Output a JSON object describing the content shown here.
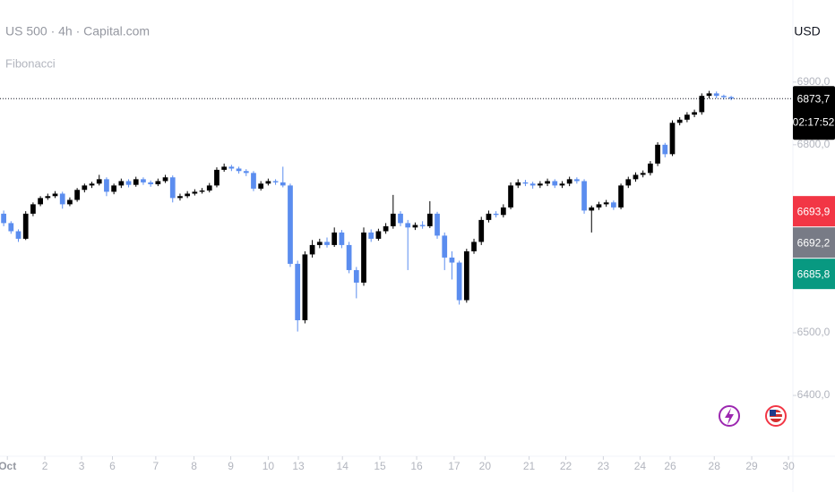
{
  "chart_data": {
    "type": "candlestick",
    "title": "US 500 · 4h · Capital.com",
    "subtitle": "Fibonacci",
    "currency": "USD",
    "up_color": "#000000",
    "down_color": "#5b8def",
    "xlim": [
      -0.5,
      107.4
    ],
    "ylim": [
      6303,
      7031
    ],
    "yticks": [
      {
        "value": 6900,
        "label": "6900,0"
      },
      {
        "value": 6800,
        "label": "6800,0"
      },
      {
        "value": 6500,
        "label": "6500,0"
      },
      {
        "value": 6400,
        "label": "6400,0"
      }
    ],
    "xticks": [
      {
        "value": 0.5,
        "label": "Oct"
      },
      {
        "value": 5.6,
        "label": "2"
      },
      {
        "value": 10.6,
        "label": "3"
      },
      {
        "value": 14.8,
        "label": "6"
      },
      {
        "value": 20.7,
        "label": "7"
      },
      {
        "value": 25.9,
        "label": "8"
      },
      {
        "value": 30.9,
        "label": "9"
      },
      {
        "value": 36,
        "label": "10"
      },
      {
        "value": 40.1,
        "label": "13"
      },
      {
        "value": 46.1,
        "label": "14"
      },
      {
        "value": 51.2,
        "label": "15"
      },
      {
        "value": 56.2,
        "label": "16"
      },
      {
        "value": 61.3,
        "label": "17"
      },
      {
        "value": 65.5,
        "label": "20"
      },
      {
        "value": 71.5,
        "label": "21"
      },
      {
        "value": 76.5,
        "label": "22"
      },
      {
        "value": 81.6,
        "label": "23"
      },
      {
        "value": 86.6,
        "label": "24"
      },
      {
        "value": 90.7,
        "label": "26"
      },
      {
        "value": 96.7,
        "label": "28"
      },
      {
        "value": 101.8,
        "label": "29"
      },
      {
        "value": 106.8,
        "label": "30"
      }
    ],
    "last_price": {
      "value": 6873.7,
      "label": "6873,7",
      "countdown": "02:17:52",
      "color": "#000000"
    },
    "price_tags": [
      {
        "value": 6693.9,
        "label": "6693,9",
        "color": "#f23645"
      },
      {
        "value": 6692.2,
        "label": "6692,2",
        "color": "#787b86"
      },
      {
        "value": 6685.8,
        "label": "6685,8",
        "color": "#089981"
      }
    ],
    "ohlc": [
      [
        6690,
        6695,
        6670,
        6675
      ],
      [
        6675,
        6678,
        6658,
        6662
      ],
      [
        6662,
        6665,
        6645,
        6650
      ],
      [
        6650,
        6694,
        6648,
        6690
      ],
      [
        6690,
        6708,
        6686,
        6705
      ],
      [
        6705,
        6718,
        6702,
        6715
      ],
      [
        6715,
        6722,
        6712,
        6718
      ],
      [
        6718,
        6726,
        6715,
        6722
      ],
      [
        6722,
        6725,
        6698,
        6705
      ],
      [
        6705,
        6716,
        6702,
        6712
      ],
      [
        6712,
        6731,
        6709,
        6728
      ],
      [
        6728,
        6738,
        6724,
        6735
      ],
      [
        6735,
        6741,
        6731,
        6738
      ],
      [
        6738,
        6752,
        6735,
        6745
      ],
      [
        6745,
        6748,
        6718,
        6725
      ],
      [
        6725,
        6738,
        6721,
        6735
      ],
      [
        6735,
        6746,
        6731,
        6742
      ],
      [
        6742,
        6745,
        6732,
        6736
      ],
      [
        6736,
        6749,
        6733,
        6745
      ],
      [
        6745,
        6748,
        6736,
        6740
      ],
      [
        6740,
        6743,
        6733,
        6737
      ],
      [
        6737,
        6746,
        6734,
        6742
      ],
      [
        6742,
        6752,
        6739,
        6748
      ],
      [
        6748,
        6751,
        6708,
        6715
      ],
      [
        6715,
        6722,
        6711,
        6718
      ],
      [
        6718,
        6726,
        6715,
        6722
      ],
      [
        6722,
        6729,
        6719,
        6725
      ],
      [
        6725,
        6731,
        6722,
        6727
      ],
      [
        6727,
        6739,
        6724,
        6735
      ],
      [
        6735,
        6764,
        6732,
        6760
      ],
      [
        6760,
        6770,
        6757,
        6765
      ],
      [
        6765,
        6768,
        6758,
        6762
      ],
      [
        6762,
        6765,
        6754,
        6758
      ],
      [
        6758,
        6761,
        6750,
        6755
      ],
      [
        6755,
        6758,
        6726,
        6730
      ],
      [
        6730,
        6742,
        6727,
        6738
      ],
      [
        6738,
        6746,
        6735,
        6742
      ],
      [
        6742,
        6745,
        6736,
        6740
      ],
      [
        6740,
        6765,
        6732,
        6735
      ],
      [
        6735,
        6738,
        6605,
        6610
      ],
      [
        6610,
        6615,
        6502,
        6520
      ],
      [
        6520,
        6630,
        6515,
        6625
      ],
      [
        6625,
        6648,
        6620,
        6640
      ],
      [
        6640,
        6650,
        6635,
        6645
      ],
      [
        6645,
        6652,
        6636,
        6640
      ],
      [
        6640,
        6668,
        6637,
        6660
      ],
      [
        6660,
        6664,
        6635,
        6640
      ],
      [
        6640,
        6645,
        6595,
        6600
      ],
      [
        6600,
        6605,
        6555,
        6580
      ],
      [
        6580,
        6668,
        6575,
        6660
      ],
      [
        6660,
        6665,
        6645,
        6650
      ],
      [
        6650,
        6666,
        6647,
        6662
      ],
      [
        6662,
        6675,
        6658,
        6670
      ],
      [
        6670,
        6720,
        6666,
        6690
      ],
      [
        6690,
        6694,
        6670,
        6675
      ],
      [
        6675,
        6680,
        6600,
        6668
      ],
      [
        6668,
        6676,
        6664,
        6672
      ],
      [
        6672,
        6678,
        6666,
        6670
      ],
      [
        6670,
        6710,
        6667,
        6690
      ],
      [
        6690,
        6693,
        6650,
        6655
      ],
      [
        6655,
        6660,
        6600,
        6620
      ],
      [
        6620,
        6630,
        6585,
        6612
      ],
      [
        6612,
        6615,
        6545,
        6552
      ],
      [
        6552,
        6634,
        6548,
        6630
      ],
      [
        6630,
        6650,
        6626,
        6645
      ],
      [
        6645,
        6685,
        6640,
        6680
      ],
      [
        6680,
        6695,
        6676,
        6690
      ],
      [
        6690,
        6694,
        6684,
        6688
      ],
      [
        6688,
        6705,
        6684,
        6700
      ],
      [
        6700,
        6740,
        6697,
        6735
      ],
      [
        6735,
        6745,
        6731,
        6740
      ],
      [
        6740,
        6744,
        6734,
        6738
      ],
      [
        6738,
        6741,
        6730,
        6735
      ],
      [
        6735,
        6742,
        6731,
        6738
      ],
      [
        6738,
        6746,
        6734,
        6742
      ],
      [
        6742,
        6745,
        6731,
        6735
      ],
      [
        6735,
        6742,
        6731,
        6738
      ],
      [
        6738,
        6749,
        6734,
        6745
      ],
      [
        6745,
        6748,
        6738,
        6742
      ],
      [
        6742,
        6745,
        6690,
        6695
      ],
      [
        6695,
        6703,
        6660,
        6700
      ],
      [
        6700,
        6709,
        6696,
        6705
      ],
      [
        6705,
        6712,
        6701,
        6708
      ],
      [
        6708,
        6711,
        6696,
        6700
      ],
      [
        6700,
        6738,
        6697,
        6735
      ],
      [
        6735,
        6749,
        6731,
        6745
      ],
      [
        6745,
        6756,
        6741,
        6752
      ],
      [
        6752,
        6759,
        6748,
        6755
      ],
      [
        6755,
        6774,
        6751,
        6770
      ],
      [
        6770,
        6804,
        6766,
        6800
      ],
      [
        6800,
        6803,
        6780,
        6785
      ],
      [
        6785,
        6839,
        6782,
        6835
      ],
      [
        6835,
        6844,
        6831,
        6840
      ],
      [
        6840,
        6852,
        6836,
        6848
      ],
      [
        6848,
        6856,
        6844,
        6852
      ],
      [
        6852,
        6882,
        6848,
        6878
      ],
      [
        6878,
        6886,
        6874,
        6882
      ],
      [
        6882,
        6885,
        6874,
        6878
      ],
      [
        6878,
        6880,
        6872,
        6876
      ],
      [
        6876,
        6878,
        6871,
        6873.7
      ]
    ]
  }
}
